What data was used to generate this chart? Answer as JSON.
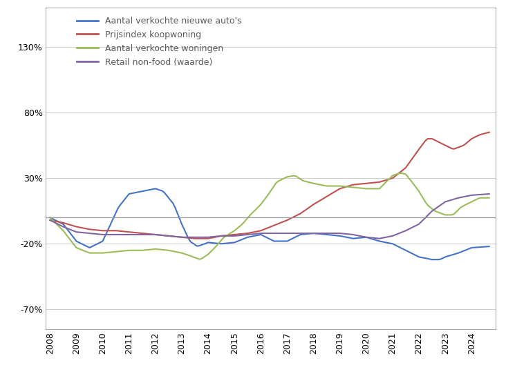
{
  "yticks": [
    -70,
    -20,
    30,
    80,
    130
  ],
  "ytick_labels": [
    "-70%",
    "-20%",
    "30%",
    "80%",
    "130%"
  ],
  "ylim": [
    -85,
    160
  ],
  "xlim": [
    2007.83,
    2024.92
  ],
  "xticks": [
    2008,
    2009,
    2010,
    2011,
    2012,
    2013,
    2014,
    2015,
    2016,
    2017,
    2018,
    2019,
    2020,
    2021,
    2022,
    2023,
    2024
  ],
  "series": {
    "autos": {
      "label": "Aantal verkochte nieuwe auto's",
      "color": "#4472C4",
      "linewidth": 1.5
    },
    "prijsindex": {
      "label": "Prijsindex koopwoning",
      "color": "#C0504D",
      "linewidth": 1.5
    },
    "woningen": {
      "label": "Aantal verkochte woningen",
      "color": "#9BBB59",
      "linewidth": 1.5
    },
    "retail": {
      "label": "Retail non-food (waarde)",
      "color": "#8064A2",
      "linewidth": 1.5
    }
  },
  "grid_color": "#CCCCCC",
  "background_color": "#FFFFFF",
  "border_color": "#AAAAAA",
  "autos_pts": [
    [
      2008.0,
      0
    ],
    [
      2008.5,
      -5
    ],
    [
      2009.0,
      -18
    ],
    [
      2009.5,
      -23
    ],
    [
      2010.0,
      -18
    ],
    [
      2010.3,
      -5
    ],
    [
      2010.6,
      8
    ],
    [
      2011.0,
      18
    ],
    [
      2011.5,
      20
    ],
    [
      2012.0,
      22
    ],
    [
      2012.3,
      20
    ],
    [
      2012.7,
      10
    ],
    [
      2013.0,
      -5
    ],
    [
      2013.3,
      -18
    ],
    [
      2013.6,
      -22
    ],
    [
      2014.0,
      -19
    ],
    [
      2014.5,
      -20
    ],
    [
      2015.0,
      -19
    ],
    [
      2015.5,
      -15
    ],
    [
      2016.0,
      -13
    ],
    [
      2016.5,
      -18
    ],
    [
      2017.0,
      -18
    ],
    [
      2017.5,
      -13
    ],
    [
      2018.0,
      -12
    ],
    [
      2018.5,
      -13
    ],
    [
      2019.0,
      -14
    ],
    [
      2019.5,
      -16
    ],
    [
      2020.0,
      -15
    ],
    [
      2020.5,
      -18
    ],
    [
      2021.0,
      -20
    ],
    [
      2021.5,
      -25
    ],
    [
      2022.0,
      -30
    ],
    [
      2022.5,
      -32
    ],
    [
      2022.8,
      -32
    ],
    [
      2023.0,
      -30
    ],
    [
      2023.5,
      -27
    ],
    [
      2024.0,
      -23
    ],
    [
      2024.67,
      -22
    ]
  ],
  "prijsindex_pts": [
    [
      2008.0,
      -2
    ],
    [
      2008.5,
      -4
    ],
    [
      2009.0,
      -7
    ],
    [
      2009.5,
      -9
    ],
    [
      2010.0,
      -10
    ],
    [
      2010.5,
      -10
    ],
    [
      2011.0,
      -11
    ],
    [
      2011.5,
      -12
    ],
    [
      2012.0,
      -13
    ],
    [
      2012.5,
      -14
    ],
    [
      2013.0,
      -15
    ],
    [
      2013.5,
      -16
    ],
    [
      2014.0,
      -16
    ],
    [
      2014.5,
      -14
    ],
    [
      2015.0,
      -13
    ],
    [
      2015.5,
      -12
    ],
    [
      2016.0,
      -10
    ],
    [
      2016.5,
      -6
    ],
    [
      2017.0,
      -2
    ],
    [
      2017.5,
      3
    ],
    [
      2018.0,
      10
    ],
    [
      2018.5,
      16
    ],
    [
      2019.0,
      22
    ],
    [
      2019.5,
      25
    ],
    [
      2020.0,
      26
    ],
    [
      2020.5,
      27
    ],
    [
      2021.0,
      30
    ],
    [
      2021.5,
      38
    ],
    [
      2022.0,
      52
    ],
    [
      2022.3,
      60
    ],
    [
      2022.5,
      60
    ],
    [
      2022.8,
      57
    ],
    [
      2023.0,
      55
    ],
    [
      2023.3,
      52
    ],
    [
      2023.7,
      55
    ],
    [
      2024.0,
      60
    ],
    [
      2024.3,
      63
    ],
    [
      2024.67,
      65
    ]
  ],
  "woningen_pts": [
    [
      2008.0,
      0
    ],
    [
      2008.5,
      -10
    ],
    [
      2009.0,
      -23
    ],
    [
      2009.5,
      -27
    ],
    [
      2010.0,
      -27
    ],
    [
      2010.5,
      -26
    ],
    [
      2011.0,
      -25
    ],
    [
      2011.5,
      -25
    ],
    [
      2012.0,
      -24
    ],
    [
      2012.5,
      -25
    ],
    [
      2013.0,
      -27
    ],
    [
      2013.3,
      -29
    ],
    [
      2013.7,
      -32
    ],
    [
      2014.0,
      -28
    ],
    [
      2014.3,
      -22
    ],
    [
      2014.6,
      -15
    ],
    [
      2015.0,
      -10
    ],
    [
      2015.3,
      -5
    ],
    [
      2015.6,
      2
    ],
    [
      2016.0,
      10
    ],
    [
      2016.3,
      18
    ],
    [
      2016.6,
      27
    ],
    [
      2017.0,
      31
    ],
    [
      2017.3,
      32
    ],
    [
      2017.6,
      28
    ],
    [
      2018.0,
      26
    ],
    [
      2018.5,
      24
    ],
    [
      2019.0,
      24
    ],
    [
      2019.5,
      23
    ],
    [
      2020.0,
      22
    ],
    [
      2020.5,
      22
    ],
    [
      2021.0,
      32
    ],
    [
      2021.3,
      34
    ],
    [
      2021.5,
      33
    ],
    [
      2021.7,
      28
    ],
    [
      2022.0,
      20
    ],
    [
      2022.3,
      10
    ],
    [
      2022.6,
      5
    ],
    [
      2023.0,
      2
    ],
    [
      2023.3,
      2
    ],
    [
      2023.6,
      8
    ],
    [
      2024.0,
      12
    ],
    [
      2024.3,
      15
    ],
    [
      2024.67,
      15
    ]
  ],
  "retail_pts": [
    [
      2008.0,
      -2
    ],
    [
      2008.5,
      -7
    ],
    [
      2009.0,
      -11
    ],
    [
      2009.5,
      -12
    ],
    [
      2010.0,
      -13
    ],
    [
      2010.5,
      -13
    ],
    [
      2011.0,
      -13
    ],
    [
      2011.5,
      -13
    ],
    [
      2012.0,
      -13
    ],
    [
      2012.5,
      -14
    ],
    [
      2013.0,
      -15
    ],
    [
      2013.5,
      -15
    ],
    [
      2014.0,
      -15
    ],
    [
      2014.5,
      -14
    ],
    [
      2015.0,
      -14
    ],
    [
      2015.5,
      -13
    ],
    [
      2016.0,
      -12
    ],
    [
      2016.5,
      -12
    ],
    [
      2017.0,
      -12
    ],
    [
      2017.5,
      -12
    ],
    [
      2018.0,
      -12
    ],
    [
      2018.5,
      -12
    ],
    [
      2019.0,
      -12
    ],
    [
      2019.5,
      -13
    ],
    [
      2020.0,
      -15
    ],
    [
      2020.5,
      -16
    ],
    [
      2021.0,
      -14
    ],
    [
      2021.5,
      -10
    ],
    [
      2022.0,
      -5
    ],
    [
      2022.5,
      5
    ],
    [
      2023.0,
      12
    ],
    [
      2023.5,
      15
    ],
    [
      2024.0,
      17
    ],
    [
      2024.67,
      18
    ]
  ]
}
